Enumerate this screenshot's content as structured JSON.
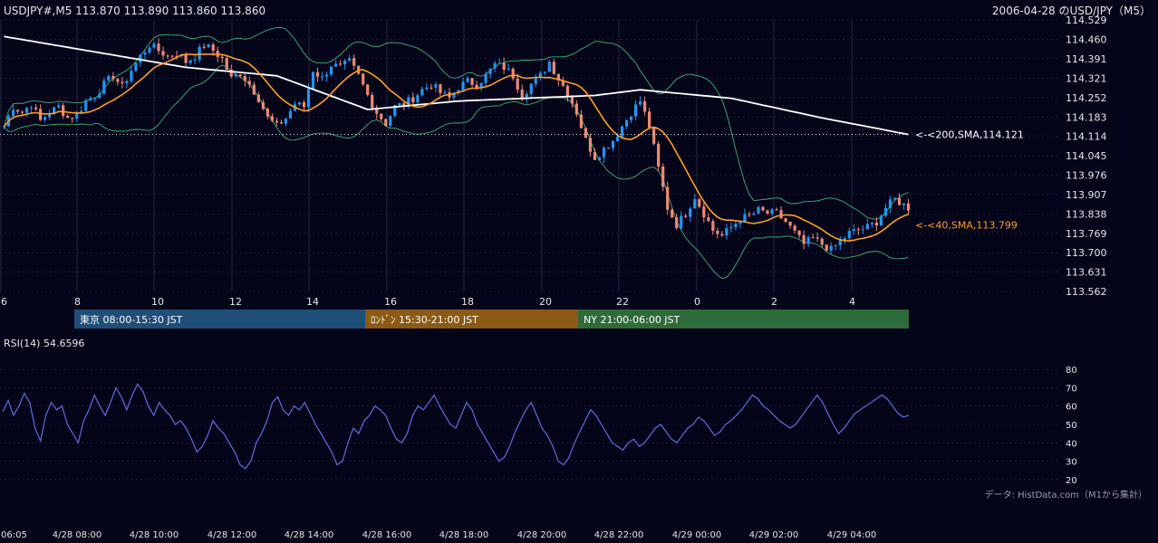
{
  "header": {
    "ohlc_label": "USDJPY#,M5 113.870 113.890 113.860 113.860",
    "title_right": "2006-04-28 のUSD/JPY（M5）"
  },
  "colors": {
    "background": "#05051a",
    "candle_up": "#2196f3",
    "candle_down": "#ef8a75",
    "sma200": "#ffffff",
    "sma40": "#ff9f1c",
    "bollinger": "#3cb371",
    "rsi": "#5b6ee1",
    "grid": "#2a2a48"
  },
  "chart_data": [
    {
      "type": "candlestick",
      "symbol": "USDJPY",
      "timeframe": "M5",
      "y_ticks": [
        "114.529",
        "114.460",
        "114.391",
        "114.321",
        "114.252",
        "114.183",
        "114.114",
        "114.045",
        "113.976",
        "113.907",
        "113.838",
        "113.769",
        "113.700",
        "113.631",
        "113.562"
      ],
      "ylim": [
        113.562,
        114.529
      ],
      "x_ticks": [
        "6",
        "8",
        "10",
        "12",
        "14",
        "16",
        "18",
        "20",
        "22",
        "0",
        "2",
        "4"
      ],
      "price_path": [
        [
          0,
          114.15
        ],
        [
          2,
          114.22
        ],
        [
          4,
          114.2
        ],
        [
          6,
          114.23
        ],
        [
          8,
          114.17
        ],
        [
          10,
          114.2
        ],
        [
          12,
          114.22
        ],
        [
          14,
          114.18
        ],
        [
          16,
          114.19
        ],
        [
          18,
          114.24
        ],
        [
          20,
          114.26
        ],
        [
          22,
          114.3
        ],
        [
          24,
          114.33
        ],
        [
          26,
          114.29
        ],
        [
          28,
          114.35
        ],
        [
          30,
          114.4
        ],
        [
          32,
          114.44
        ],
        [
          34,
          114.42
        ],
        [
          36,
          114.4
        ],
        [
          38,
          114.41
        ],
        [
          40,
          114.38
        ],
        [
          42,
          114.4
        ],
        [
          44,
          114.44
        ],
        [
          46,
          114.42
        ],
        [
          48,
          114.39
        ],
        [
          50,
          114.32
        ],
        [
          52,
          114.34
        ],
        [
          54,
          114.3
        ],
        [
          56,
          114.25
        ],
        [
          58,
          114.18
        ],
        [
          60,
          114.15
        ],
        [
          62,
          114.18
        ],
        [
          64,
          114.23
        ],
        [
          66,
          114.22
        ],
        [
          68,
          114.35
        ],
        [
          70,
          114.32
        ],
        [
          72,
          114.37
        ],
        [
          74,
          114.36
        ],
        [
          76,
          114.38
        ],
        [
          78,
          114.33
        ],
        [
          80,
          114.26
        ],
        [
          82,
          114.2
        ],
        [
          84,
          114.16
        ],
        [
          86,
          114.22
        ],
        [
          88,
          114.23
        ],
        [
          90,
          114.25
        ],
        [
          92,
          114.28
        ],
        [
          94,
          114.3
        ],
        [
          96,
          114.27
        ],
        [
          98,
          114.25
        ],
        [
          100,
          114.29
        ],
        [
          102,
          114.31
        ],
        [
          104,
          114.3
        ],
        [
          106,
          114.33
        ],
        [
          108,
          114.37
        ],
        [
          110,
          114.36
        ],
        [
          112,
          114.33
        ],
        [
          114,
          114.26
        ],
        [
          116,
          114.3
        ],
        [
          118,
          114.33
        ],
        [
          120,
          114.38
        ],
        [
          122,
          114.32
        ],
        [
          124,
          114.27
        ],
        [
          126,
          114.2
        ],
        [
          128,
          114.1
        ],
        [
          130,
          114.04
        ],
        [
          132,
          114.07
        ],
        [
          134,
          114.1
        ],
        [
          136,
          114.15
        ],
        [
          138,
          114.2
        ],
        [
          140,
          114.24
        ],
        [
          142,
          114.15
        ],
        [
          144,
          114.0
        ],
        [
          146,
          113.86
        ],
        [
          148,
          113.8
        ],
        [
          150,
          113.84
        ],
        [
          152,
          113.9
        ],
        [
          154,
          113.84
        ],
        [
          156,
          113.78
        ],
        [
          158,
          113.76
        ],
        [
          160,
          113.79
        ],
        [
          162,
          113.82
        ],
        [
          164,
          113.83
        ],
        [
          166,
          113.85
        ],
        [
          168,
          113.84
        ],
        [
          170,
          113.84
        ],
        [
          172,
          113.81
        ],
        [
          174,
          113.77
        ],
        [
          176,
          113.73
        ],
        [
          178,
          113.75
        ],
        [
          180,
          113.73
        ],
        [
          182,
          113.71
        ],
        [
          184,
          113.74
        ],
        [
          186,
          113.77
        ],
        [
          188,
          113.78
        ],
        [
          190,
          113.79
        ],
        [
          192,
          113.81
        ],
        [
          194,
          113.86
        ],
        [
          196,
          113.89
        ],
        [
          198,
          113.87
        ],
        [
          199,
          113.86
        ]
      ],
      "series": [
        {
          "name": "<-<200,SMA,114.121",
          "value": 114.121
        },
        {
          "name": "<-<40,SMA,113.799",
          "value": 113.799
        }
      ],
      "reference_line": 114.121
    },
    {
      "type": "line",
      "title": "RSI(14) 54.6596",
      "y_ticks": [
        "80",
        "70",
        "60",
        "50",
        "40",
        "30",
        "20"
      ],
      "ylim": [
        20,
        80
      ],
      "rsi_values": [
        57,
        63,
        55,
        60,
        67,
        62,
        48,
        41,
        55,
        62,
        58,
        60,
        50,
        45,
        40,
        52,
        58,
        66,
        60,
        55,
        62,
        70,
        65,
        58,
        66,
        72,
        68,
        60,
        55,
        62,
        58,
        55,
        50,
        52,
        48,
        42,
        35,
        38,
        44,
        52,
        48,
        45,
        40,
        35,
        28,
        26,
        30,
        40,
        45,
        52,
        62,
        65,
        58,
        55,
        60,
        58,
        62,
        56,
        50,
        45,
        40,
        35,
        28,
        30,
        40,
        48,
        45,
        52,
        55,
        60,
        58,
        55,
        48,
        42,
        40,
        45,
        55,
        60,
        58,
        62,
        66,
        60,
        55,
        50,
        48,
        55,
        62,
        58,
        50,
        45,
        40,
        35,
        30,
        32,
        38,
        46,
        52,
        58,
        62,
        55,
        48,
        44,
        38,
        30,
        28,
        32,
        40,
        46,
        52,
        58,
        55,
        50,
        45,
        40,
        38,
        36,
        40,
        42,
        38,
        40,
        44,
        48,
        50,
        46,
        42,
        40,
        44,
        48,
        50,
        54,
        52,
        48,
        44,
        46,
        50,
        52,
        55,
        58,
        62,
        66,
        64,
        60,
        58,
        55,
        52,
        50,
        48,
        50,
        54,
        58,
        62,
        66,
        62,
        56,
        50,
        45,
        48,
        52,
        56,
        58,
        60,
        62,
        64,
        66,
        64,
        60,
        56,
        54,
        55
      ]
    }
  ],
  "sessions": [
    {
      "label": "東京 08:00-15:30 JST",
      "color": "#1f4e79"
    },
    {
      "label": "ﾛﾝﾄﾞﾝ 15:30-21:00 JST",
      "color": "#8b5a14"
    },
    {
      "label": "NY 21:00-06:00 JST",
      "color": "#2e6b3a"
    }
  ],
  "time_axis": [
    "06:05",
    "4/28 08:00",
    "4/28 10:00",
    "4/28 12:00",
    "4/28 14:00",
    "4/28 16:00",
    "4/28 18:00",
    "4/28 20:00",
    "4/28 22:00",
    "4/29 00:00",
    "4/29 02:00",
    "4/29 04:00"
  ],
  "footer_note": "データ: HistData.com（M1から集計）"
}
